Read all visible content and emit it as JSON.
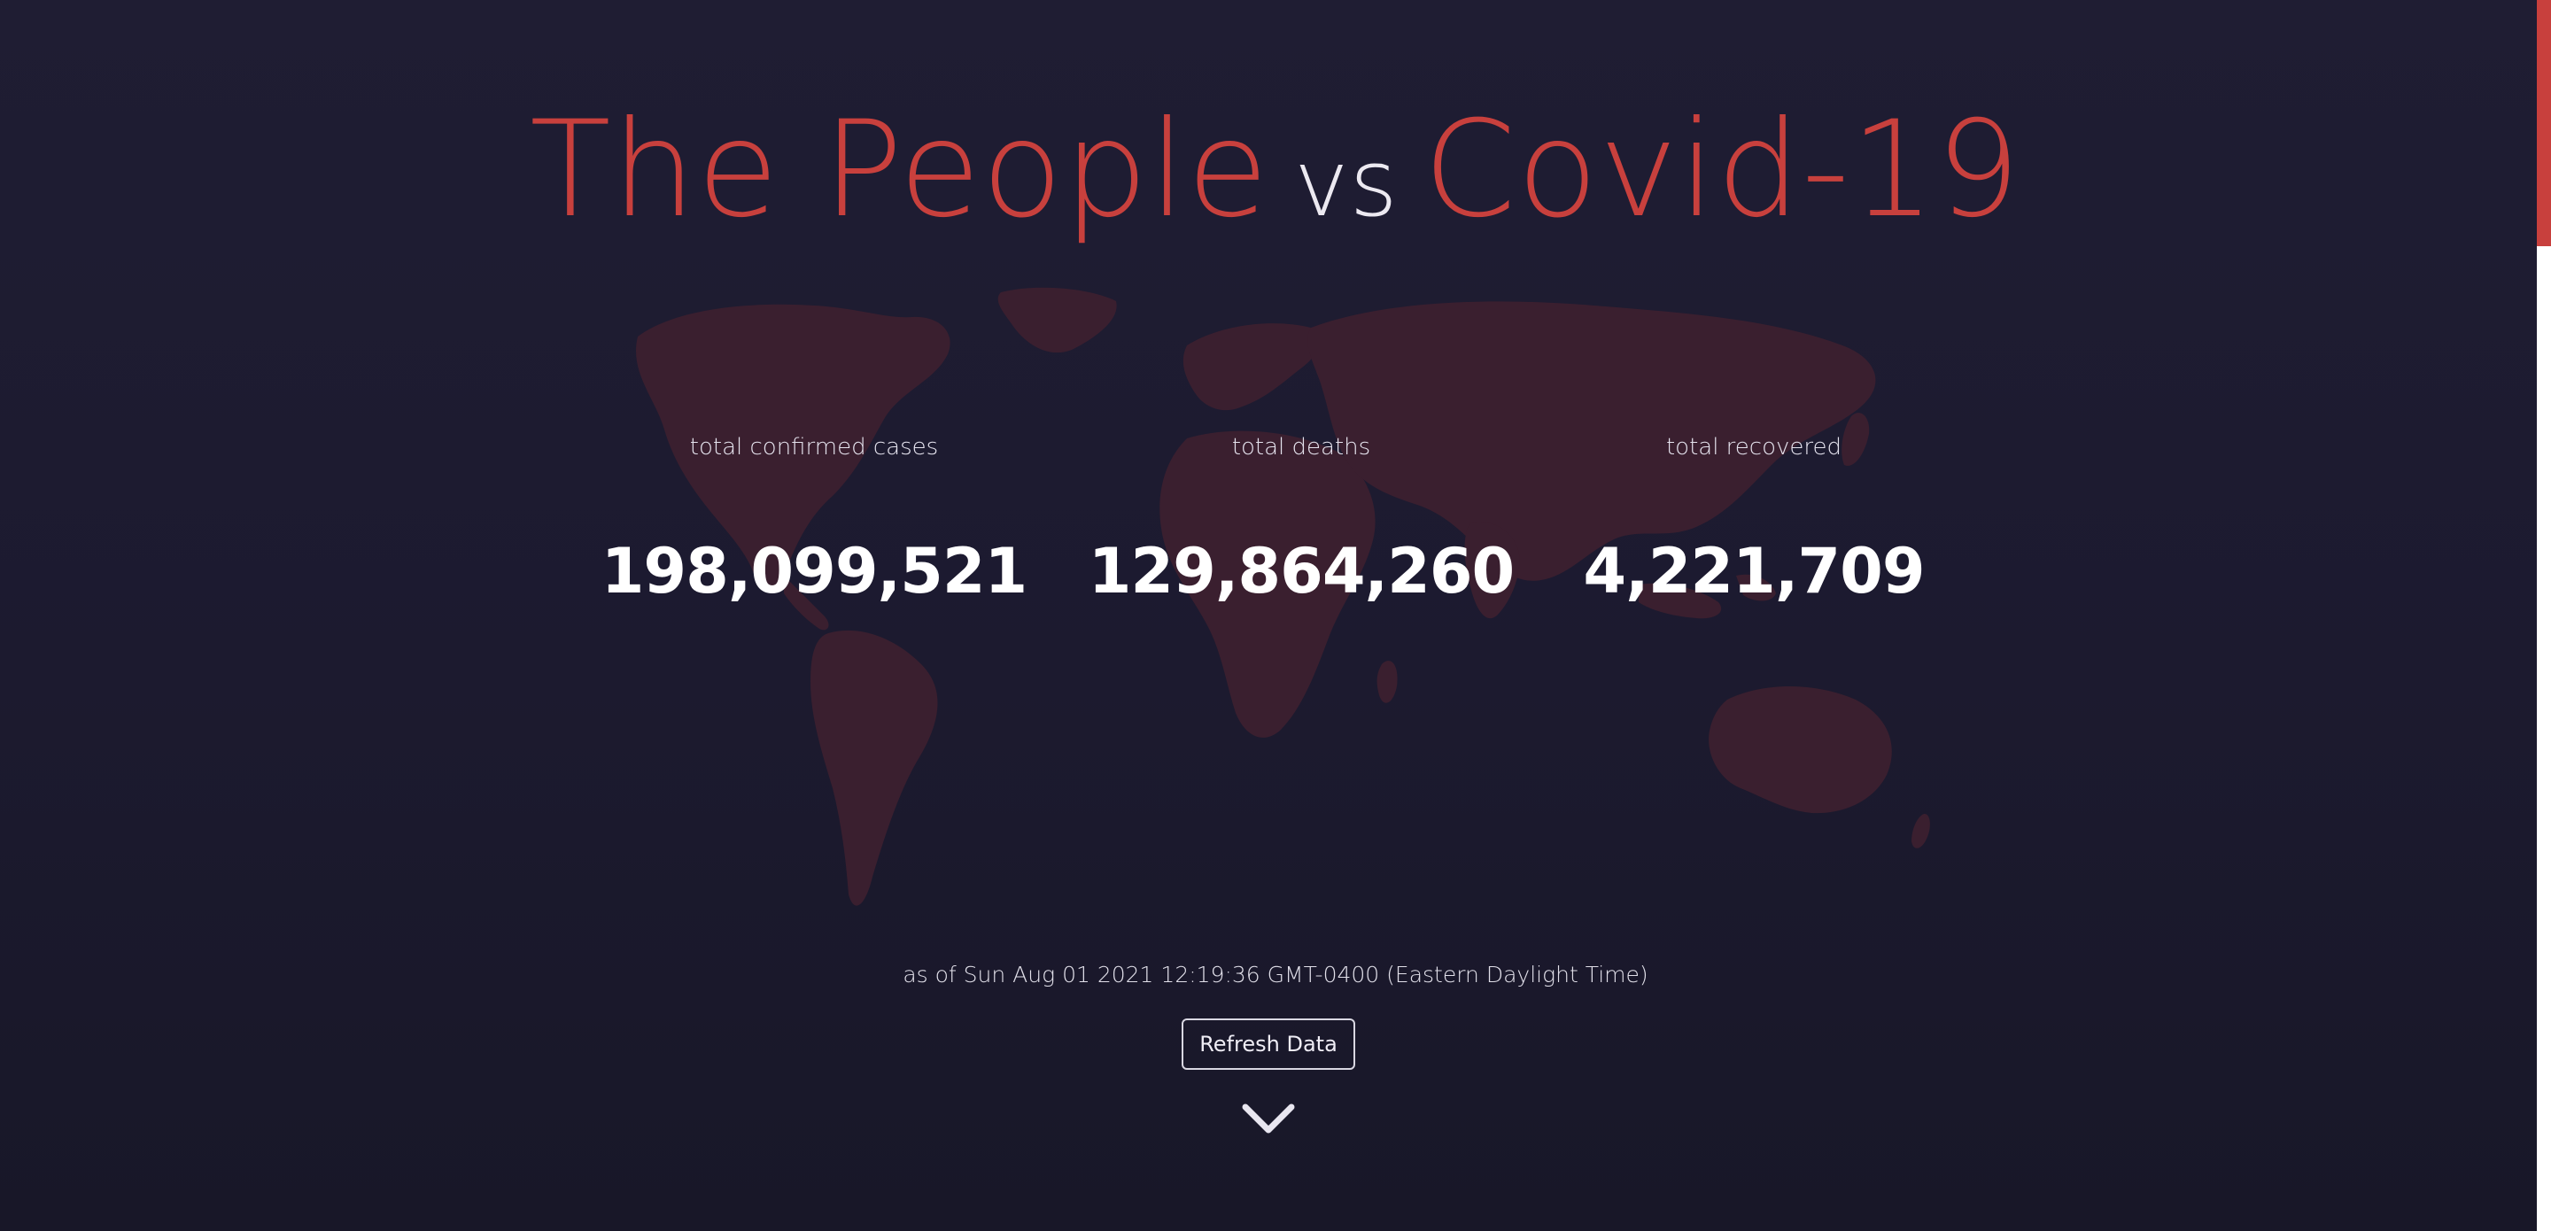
{
  "colors": {
    "background": "#1c1b2e",
    "accent_red": "#c8403d",
    "map_fill": "#3a1f2f",
    "text_white": "#ffffff"
  },
  "header": {
    "title_part1": "The People",
    "title_vs": "vs",
    "title_part2": "Covid-19"
  },
  "stats": [
    {
      "label": "total confirmed cases",
      "value": "198,099,521"
    },
    {
      "label": "total deaths",
      "value": "129,864,260"
    },
    {
      "label": "total recovered",
      "value": "4,221,709"
    }
  ],
  "footer": {
    "as_of": "as of Sun Aug 01 2021 12:19:36 GMT-0400 (Eastern Daylight Time)",
    "refresh_label": "Refresh Data"
  },
  "icons": {
    "background_map": "world-map-icon",
    "scroll_down": "chevron-down-icon"
  },
  "scrollbar": {
    "position_fraction": 0.0
  }
}
